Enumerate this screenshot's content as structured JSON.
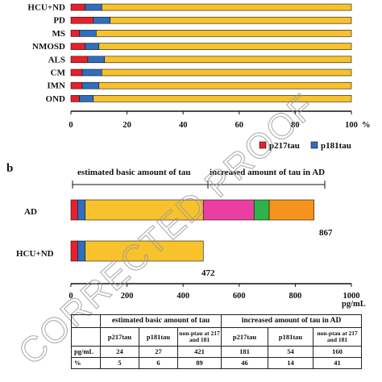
{
  "panel_a": {
    "categories": [
      "HCU+ND",
      "PD",
      "MS",
      "NMOSD",
      "ALS",
      "CM",
      "IMN",
      "OND"
    ],
    "x_ticks": [
      "0",
      "20",
      "40",
      "60",
      "80",
      "100"
    ],
    "x_unit": "%",
    "legend": [
      {
        "label": "p217tau",
        "color": "#e8202a"
      },
      {
        "label": "p181tau",
        "color": "#2f6fbd"
      }
    ]
  },
  "panel_b": {
    "label": "b",
    "bracket_left": "estimated basic amount of tau",
    "bracket_right": "increased amount of tau in AD",
    "rows": [
      {
        "label": "AD",
        "total": "867"
      },
      {
        "label": "HCU+ND",
        "total": "472"
      }
    ],
    "x_ticks": [
      "0",
      "200",
      "400",
      "600",
      "800",
      "1000"
    ],
    "x_unit": "pg/mL"
  },
  "table": {
    "header_left": "estimated basic amount of tau",
    "header_right": "increased amount of tau in AD",
    "columns": [
      "p217tau",
      "p181tau",
      "non-ptau at 217 and 181",
      "p217tau",
      "p181tau",
      "non-ptau at 217 and 181"
    ],
    "rows": [
      {
        "label": "pg/mL",
        "cells": [
          "24",
          "27",
          "421",
          "181",
          "54",
          "160"
        ]
      },
      {
        "label": "%",
        "cells": [
          "5",
          "6",
          "89",
          "46",
          "14",
          "41"
        ]
      }
    ]
  },
  "watermark": "CORRECTED PROOF",
  "chart_data": [
    {
      "type": "bar",
      "orientation": "horizontal",
      "stacked": true,
      "categories": [
        "HCU+ND",
        "PD",
        "MS",
        "NMOSD",
        "ALS",
        "CM",
        "IMN",
        "OND"
      ],
      "xlim": [
        0,
        100
      ],
      "series": [
        {
          "name": "p217tau",
          "color": "#e8202a",
          "values": [
            5,
            8,
            3,
            5,
            6,
            4,
            4,
            3
          ]
        },
        {
          "name": "p181tau",
          "color": "#2f6fbd",
          "values": [
            6,
            6,
            6,
            5,
            6,
            7,
            6,
            5
          ]
        },
        {
          "color": "#f7c22b",
          "values": [
            89,
            86,
            91,
            90,
            88,
            89,
            90,
            92
          ]
        }
      ],
      "legend_position": "bottom-right"
    },
    {
      "type": "bar",
      "orientation": "horizontal",
      "stacked": true,
      "categories": [
        "AD",
        "HCU+ND"
      ],
      "xlim": [
        0,
        1000
      ],
      "segments": [
        {
          "color": "#e8202a",
          "values": [
            24,
            24
          ]
        },
        {
          "color": "#2f6fbd",
          "values": [
            27,
            27
          ]
        },
        {
          "color": "#f7c22b",
          "values": [
            421,
            421
          ]
        },
        {
          "color": "#ea3fa0",
          "values": [
            181,
            0
          ]
        },
        {
          "color": "#2db34a",
          "values": [
            54,
            0
          ]
        },
        {
          "color": "#f6921e",
          "values": [
            160,
            0
          ]
        }
      ],
      "totals": [
        867,
        472
      ]
    }
  ]
}
